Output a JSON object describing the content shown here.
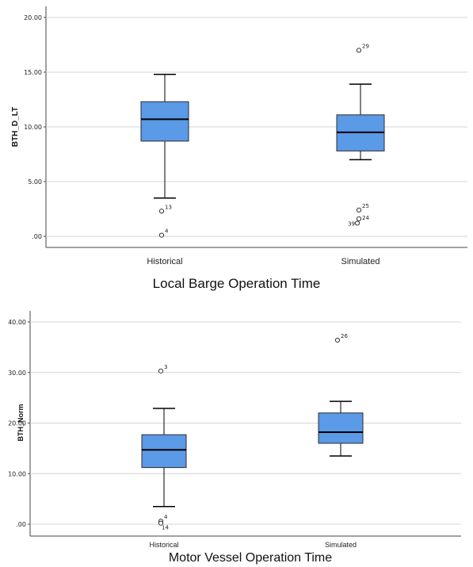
{
  "chart_data": [
    {
      "type": "boxplot",
      "caption": "Local Barge Operation Time",
      "ylabel": "BTH_D_LT",
      "ylim": [
        0,
        20
      ],
      "yticks": [
        "20.00",
        "15.00",
        "10.00",
        "5.00",
        ".00"
      ],
      "ytick_values": [
        20,
        15,
        10,
        5,
        0
      ],
      "grid": true,
      "box_color": "#5a9ae6",
      "categories": [
        "Historical",
        "Simulated"
      ],
      "boxes": [
        {
          "name": "Historical",
          "whisker_low": 3.5,
          "q1": 8.7,
          "median": 10.7,
          "q3": 12.3,
          "whisker_high": 14.8,
          "outliers": [
            {
              "value": 2.3,
              "label": "13"
            },
            {
              "value": 0.1,
              "label": "4"
            }
          ]
        },
        {
          "name": "Simulated",
          "whisker_low": 7.0,
          "q1": 7.8,
          "median": 9.5,
          "q3": 11.1,
          "whisker_high": 13.9,
          "outliers": [
            {
              "value": 17.0,
              "label": "29"
            },
            {
              "value": 2.4,
              "label": "25"
            },
            {
              "value": 1.6,
              "label": "24"
            },
            {
              "value": 1.2,
              "label": "39"
            }
          ]
        }
      ]
    },
    {
      "type": "boxplot",
      "caption": "Motor Vessel Operation Time",
      "ylabel": "BTH_Norm",
      "ylim": [
        0,
        40
      ],
      "yticks": [
        "40.00",
        "30.00",
        "20.00",
        "10.00",
        ".00"
      ],
      "ytick_values": [
        40,
        30,
        20,
        10,
        0
      ],
      "grid": true,
      "box_color": "#5a9ae6",
      "categories": [
        "Historical",
        "Simulated"
      ],
      "boxes": [
        {
          "name": "Historical",
          "whisker_low": 3.5,
          "q1": 11.2,
          "median": 14.7,
          "q3": 17.7,
          "whisker_high": 22.9,
          "outliers": [
            {
              "value": 30.3,
              "label": "3"
            },
            {
              "value": 0.6,
              "label": "4"
            },
            {
              "value": 0.2,
              "label": "14"
            }
          ]
        },
        {
          "name": "Simulated",
          "whisker_low": 13.5,
          "q1": 16.0,
          "median": 18.2,
          "q3": 22.0,
          "whisker_high": 24.3,
          "outliers": [
            {
              "value": 36.4,
              "label": "26"
            }
          ]
        }
      ]
    }
  ]
}
